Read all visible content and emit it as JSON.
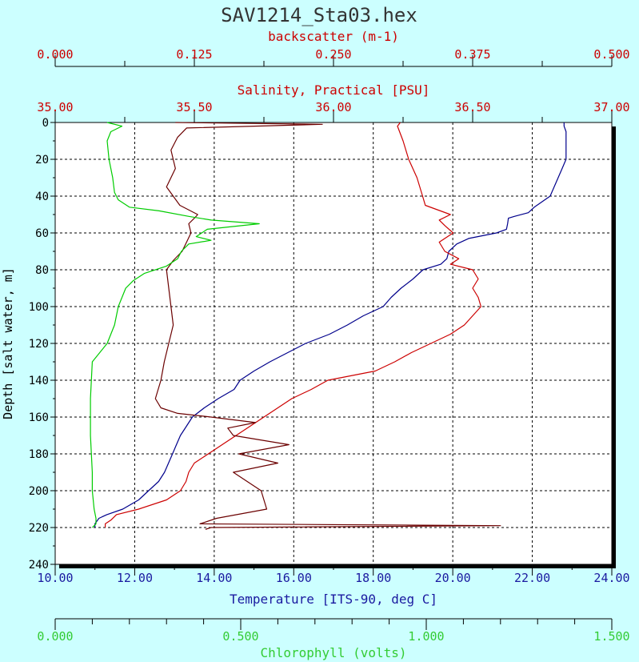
{
  "title": "SAV1214_Sta03.hex",
  "colors": {
    "background": "#ccffff",
    "plot_background": "#ffffff",
    "temperature": "#00008b",
    "salinity": "#cc0000",
    "backscatter": "#6b0000",
    "chlorophyll": "#00cc00",
    "axis_dark": "#000000",
    "title": "#333333"
  },
  "chart_data": {
    "type": "line",
    "title": "SAV1214_Sta03.hex",
    "grid": true,
    "y_axis": {
      "label": "Depth [salt water, m]",
      "range": [
        0,
        240
      ],
      "inverted": true,
      "ticks": [
        "0",
        "20",
        "40",
        "60",
        "80",
        "100",
        "120",
        "140",
        "160",
        "180",
        "200",
        "220",
        "240"
      ]
    },
    "axes": [
      {
        "key": "backscatter",
        "label": "backscatter (m-1)",
        "position": "top-outer",
        "range": [
          0.0,
          0.5
        ],
        "ticks": [
          "0.000",
          "0.125",
          "0.250",
          "0.375",
          "0.500"
        ],
        "color": "#cc0000"
      },
      {
        "key": "salinity",
        "label": "Salinity, Practical [PSU]",
        "position": "top-inner",
        "range": [
          35.0,
          37.0
        ],
        "ticks": [
          "35.00",
          "35.50",
          "36.00",
          "36.50",
          "37.00"
        ],
        "color": "#cc0000"
      },
      {
        "key": "temperature",
        "label": "Temperature [ITS-90, deg C]",
        "position": "bottom-inner",
        "range": [
          10.0,
          24.0
        ],
        "ticks": [
          "10.00",
          "12.00",
          "14.00",
          "16.00",
          "18.00",
          "20.00",
          "22.00",
          "24.00"
        ],
        "color": "#1a1aa0"
      },
      {
        "key": "chlorophyll",
        "label": "Chlorophyll (volts)",
        "position": "bottom-outer",
        "range": [
          0.0,
          1.5
        ],
        "ticks": [
          "0.000",
          "0.500",
          "1.000",
          "1.500"
        ],
        "color": "#33cc33"
      }
    ],
    "series": [
      {
        "axis": "temperature",
        "color": "#00008b",
        "depth": [
          0,
          2,
          5,
          10,
          15,
          20,
          25,
          30,
          35,
          40,
          43,
          46,
          49,
          51,
          52,
          55,
          58,
          60,
          63,
          66,
          70,
          74,
          77,
          80,
          85,
          90,
          95,
          100,
          105,
          110,
          115,
          120,
          125,
          130,
          135,
          140,
          145,
          150,
          155,
          160,
          165,
          170,
          175,
          180,
          185,
          190,
          195,
          200,
          205,
          210,
          213,
          215,
          218,
          220
        ],
        "values": [
          22.8,
          22.8,
          22.85,
          22.85,
          22.85,
          22.85,
          22.75,
          22.65,
          22.55,
          22.45,
          22.25,
          22.05,
          21.9,
          21.55,
          21.4,
          21.38,
          21.35,
          21.1,
          20.4,
          20.1,
          19.9,
          19.85,
          19.7,
          19.25,
          19.0,
          18.7,
          18.45,
          18.25,
          17.75,
          17.35,
          16.9,
          16.3,
          15.85,
          15.4,
          15.0,
          14.65,
          14.5,
          14.1,
          13.75,
          13.45,
          13.3,
          13.15,
          13.05,
          12.95,
          12.85,
          12.75,
          12.6,
          12.35,
          12.1,
          11.7,
          11.3,
          11.1,
          11.0,
          11.0
        ]
      },
      {
        "axis": "salinity",
        "color": "#cc0000",
        "depth": [
          0,
          2,
          10,
          20,
          30,
          40,
          45,
          50,
          53,
          56,
          60,
          65,
          70,
          74,
          77,
          80,
          85,
          90,
          95,
          100,
          105,
          110,
          115,
          120,
          125,
          130,
          135,
          140,
          145,
          150,
          155,
          160,
          165,
          170,
          175,
          180,
          185,
          190,
          195,
          200,
          205,
          210,
          213,
          216,
          218,
          220
        ],
        "values": [
          36.24,
          36.23,
          36.25,
          36.27,
          36.3,
          36.32,
          36.33,
          36.42,
          36.38,
          36.4,
          36.43,
          36.38,
          36.4,
          36.45,
          36.42,
          36.5,
          36.52,
          36.5,
          36.52,
          36.53,
          36.5,
          36.47,
          36.42,
          36.35,
          36.28,
          36.22,
          36.15,
          35.98,
          35.92,
          35.85,
          35.8,
          35.75,
          35.7,
          35.65,
          35.6,
          35.55,
          35.5,
          35.48,
          35.47,
          35.45,
          35.4,
          35.3,
          35.22,
          35.2,
          35.18,
          35.18
        ]
      },
      {
        "axis": "backscatter",
        "color": "#6b0000",
        "depth": [
          0,
          1,
          3,
          8,
          15,
          25,
          35,
          45,
          50,
          52,
          55,
          60,
          65,
          70,
          75,
          80,
          90,
          100,
          110,
          120,
          130,
          140,
          150,
          155,
          158,
          160,
          163,
          166,
          170,
          175,
          180,
          185,
          190,
          200,
          210,
          215,
          218,
          219,
          220,
          221
        ],
        "values": [
          0.108,
          0.24,
          0.118,
          0.11,
          0.104,
          0.108,
          0.1,
          0.112,
          0.128,
          0.125,
          0.12,
          0.122,
          0.118,
          0.114,
          0.106,
          0.1,
          0.102,
          0.104,
          0.106,
          0.102,
          0.098,
          0.095,
          0.09,
          0.095,
          0.11,
          0.14,
          0.18,
          0.155,
          0.16,
          0.21,
          0.165,
          0.2,
          0.16,
          0.185,
          0.19,
          0.145,
          0.13,
          0.4,
          0.14,
          0.135
        ]
      },
      {
        "axis": "chlorophyll",
        "color": "#00cc00",
        "depth": [
          0,
          2,
          5,
          10,
          20,
          30,
          38,
          42,
          46,
          48,
          51,
          53,
          55,
          58,
          62,
          64,
          66,
          70,
          74,
          78,
          82,
          86,
          90,
          100,
          110,
          120,
          130,
          150,
          170,
          190,
          200,
          210,
          215,
          218,
          220
        ],
        "values": [
          0.14,
          0.18,
          0.15,
          0.14,
          0.145,
          0.155,
          0.16,
          0.17,
          0.2,
          0.28,
          0.36,
          0.42,
          0.55,
          0.41,
          0.38,
          0.42,
          0.36,
          0.34,
          0.33,
          0.3,
          0.24,
          0.21,
          0.19,
          0.17,
          0.16,
          0.14,
          0.1,
          0.095,
          0.095,
          0.1,
          0.1,
          0.105,
          0.11,
          0.11,
          0.1
        ]
      }
    ]
  }
}
